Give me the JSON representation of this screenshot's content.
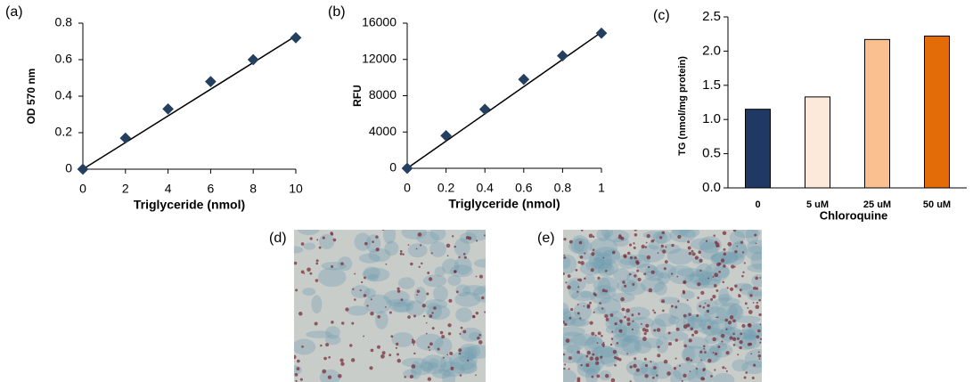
{
  "chart_data": [
    {
      "type": "scatter",
      "label": "(a)",
      "xlabel": "Triglyceride (nmol)",
      "ylabel": "OD 570 nm",
      "x": [
        0,
        2,
        4,
        6,
        8,
        10
      ],
      "y": [
        0,
        0.17,
        0.33,
        0.48,
        0.6,
        0.72
      ],
      "color": "#243f60",
      "trendline": {
        "x": [
          0,
          10
        ],
        "y": [
          0,
          0.73
        ]
      },
      "xlim": [
        0,
        10
      ],
      "xticks": [
        0,
        2,
        4,
        6,
        8,
        10
      ],
      "ylim": [
        0,
        0.8
      ],
      "yticks": [
        0,
        0.2,
        0.4,
        0.6,
        0.8
      ]
    },
    {
      "type": "scatter",
      "label": "(b)",
      "xlabel": "Triglyceride (nmol)",
      "ylabel": "RFU",
      "x": [
        0,
        0.2,
        0.4,
        0.6,
        0.8,
        1
      ],
      "y": [
        0,
        3600,
        6500,
        9800,
        12400,
        14900
      ],
      "color": "#243f60",
      "trendline": {
        "x": [
          0,
          1
        ],
        "y": [
          0,
          15000
        ]
      },
      "xlim": [
        0,
        1
      ],
      "xticks": [
        0,
        0.2,
        0.4,
        0.6,
        0.8,
        1
      ],
      "ylim": [
        0,
        16000
      ],
      "yticks": [
        0,
        4000,
        8000,
        12000,
        16000
      ]
    },
    {
      "type": "bar",
      "label": "(c)",
      "xlabel": "Chloroquine",
      "ylabel": "TG (nmol/mg protein)",
      "categories": [
        "0",
        "5 uM",
        "25 uM",
        "50 uM"
      ],
      "values": [
        1.15,
        1.33,
        2.17,
        2.22
      ],
      "colors": [
        "#1f3864",
        "#fde9d9",
        "#fac090",
        "#e36c09"
      ],
      "ylim": [
        0,
        2.5
      ],
      "yticks": [
        {
          "value": 0,
          "label": "0.0"
        },
        {
          "value": 0.5,
          "label": "0.5"
        },
        {
          "value": 1,
          "label": "1.0"
        },
        {
          "value": 1.5,
          "label": "1.5"
        },
        {
          "value": 2,
          "label": "2.0"
        },
        {
          "value": 2.5,
          "label": "2.5"
        }
      ]
    }
  ],
  "images": [
    {
      "label": "(d)"
    },
    {
      "label": "(e)"
    }
  ]
}
